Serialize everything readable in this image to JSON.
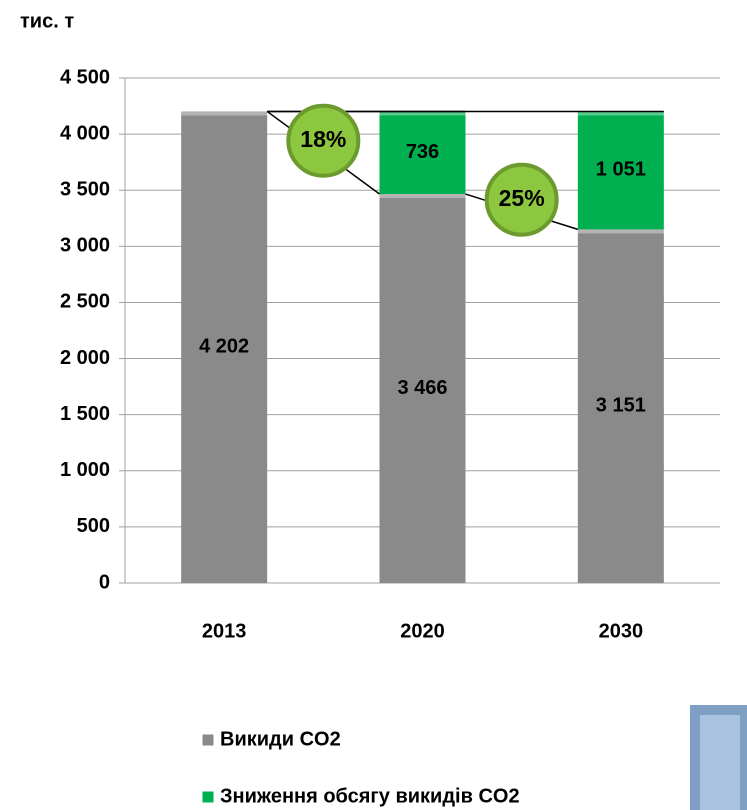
{
  "chart_data": {
    "type": "stacked_bar",
    "y_label": "тис. т",
    "categories": [
      "2013",
      "2020",
      "2030"
    ],
    "series": [
      {
        "name": "Викиди CO2",
        "color": "#8a8a8a",
        "values": [
          4202,
          3466,
          3151
        ],
        "value_labels": [
          "4 202",
          "3 466",
          "3 151"
        ]
      },
      {
        "name": "Зниження обсягу викидів CO2",
        "color": "#00b050",
        "values": [
          null,
          736,
          1051
        ],
        "value_labels": [
          null,
          "736",
          "1 051"
        ]
      }
    ],
    "annotations": [
      "18%",
      "25%"
    ],
    "ylim": [
      0,
      4500
    ],
    "yticks": [
      0,
      500,
      {
        "value": 1000,
        "label": "1 000"
      },
      {
        "value": 1500,
        "label": "1 500"
      },
      {
        "value": 2000,
        "label": "2 000"
      },
      {
        "value": 2500,
        "label": "2 500"
      },
      {
        "value": 3000,
        "label": "3 000"
      },
      {
        "value": 3500,
        "label": "3 500"
      },
      {
        "value": 4000,
        "label": "4 000"
      },
      {
        "value": 4500,
        "label": "4 500"
      }
    ],
    "grid": true,
    "legend": "bottom"
  }
}
